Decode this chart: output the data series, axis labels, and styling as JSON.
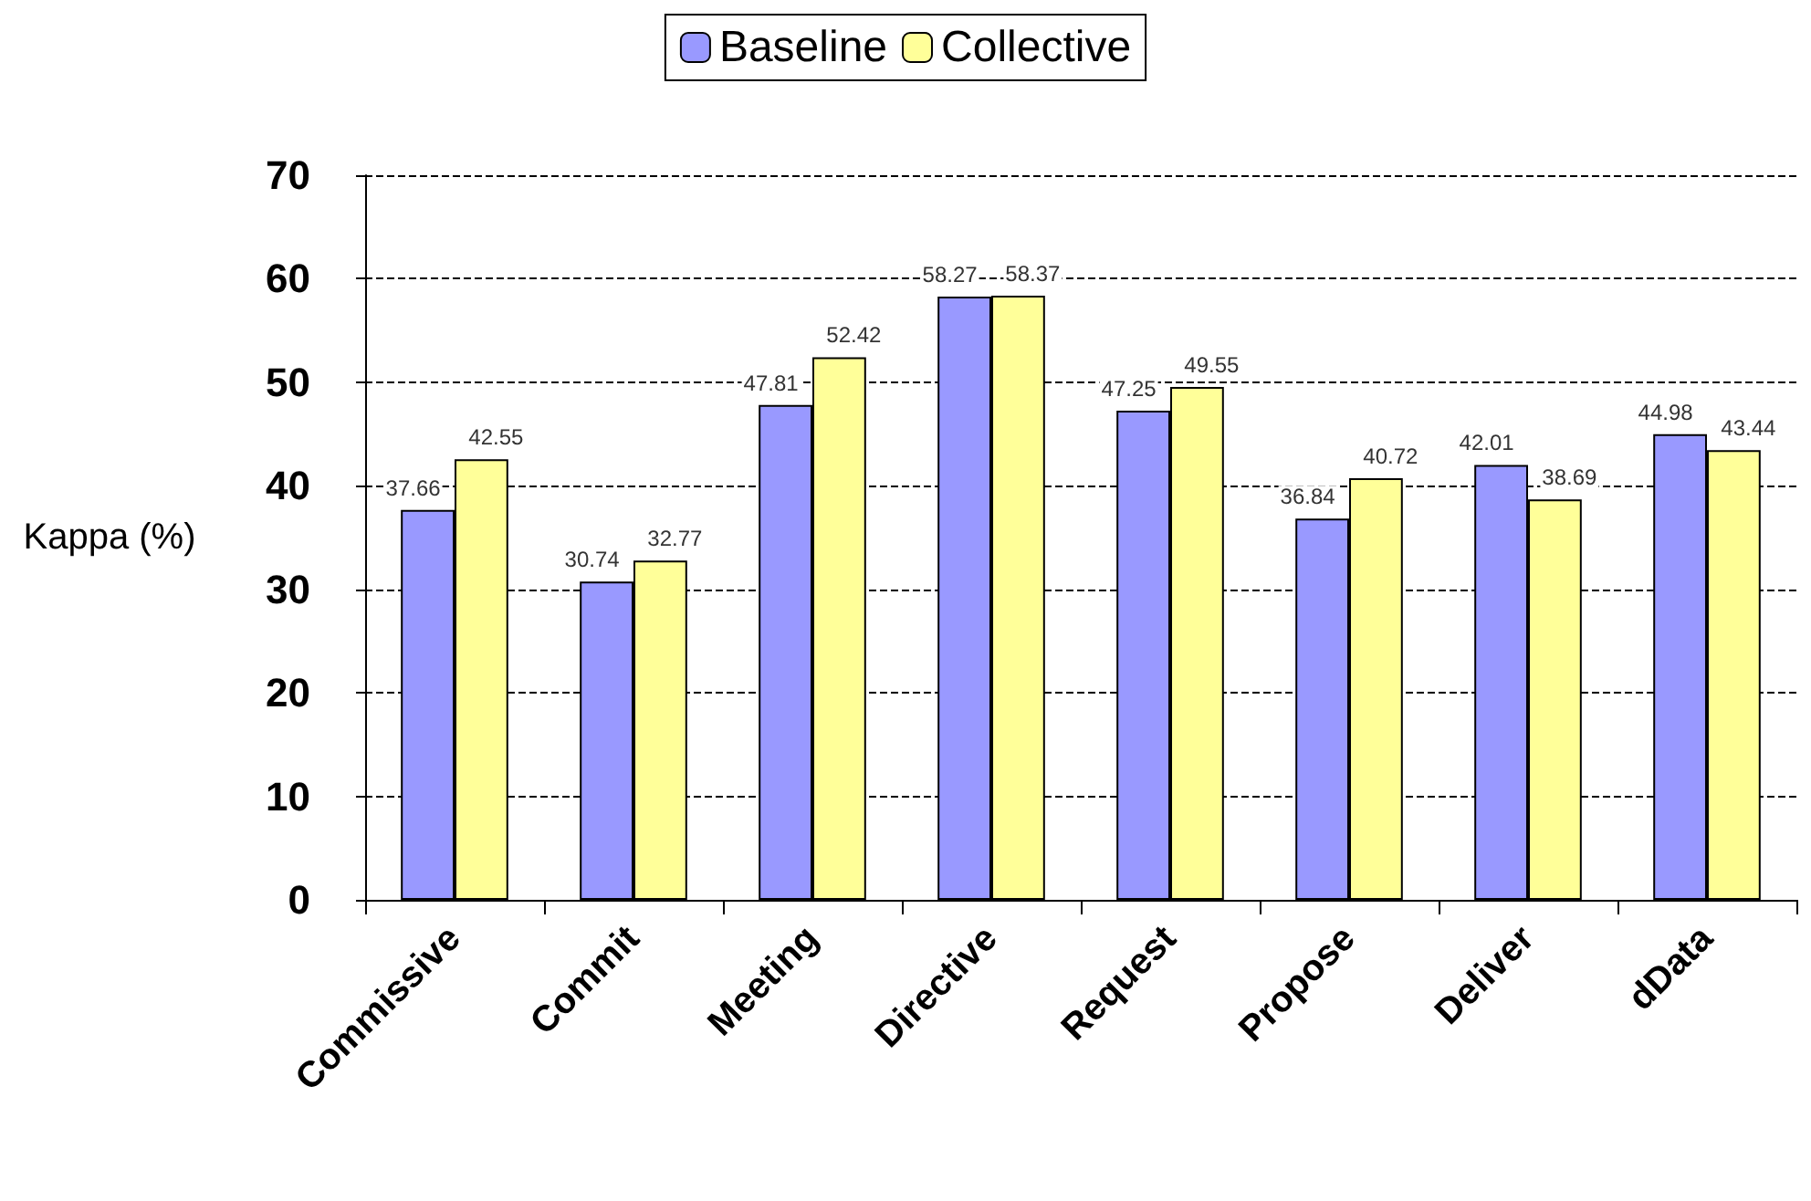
{
  "chart_data": {
    "type": "bar",
    "ylabel": "Kappa (%)",
    "categories": [
      "Commissive",
      "Commit",
      "Meeting",
      "Directive",
      "Request",
      "Propose",
      "Deliver",
      "dData"
    ],
    "series": [
      {
        "name": "Baseline",
        "color": "#9999ff",
        "values": [
          37.66,
          30.74,
          47.81,
          58.27,
          47.25,
          36.84,
          42.01,
          44.98
        ]
      },
      {
        "name": "Collective",
        "color": "#ffff99",
        "values": [
          42.55,
          32.77,
          52.42,
          58.37,
          49.55,
          40.72,
          38.69,
          43.44
        ]
      }
    ],
    "ylim": [
      0,
      70
    ],
    "yticks": [
      0,
      10,
      20,
      30,
      40,
      50,
      60,
      70
    ],
    "grid": "y",
    "legend": "top",
    "data_labels": true
  }
}
